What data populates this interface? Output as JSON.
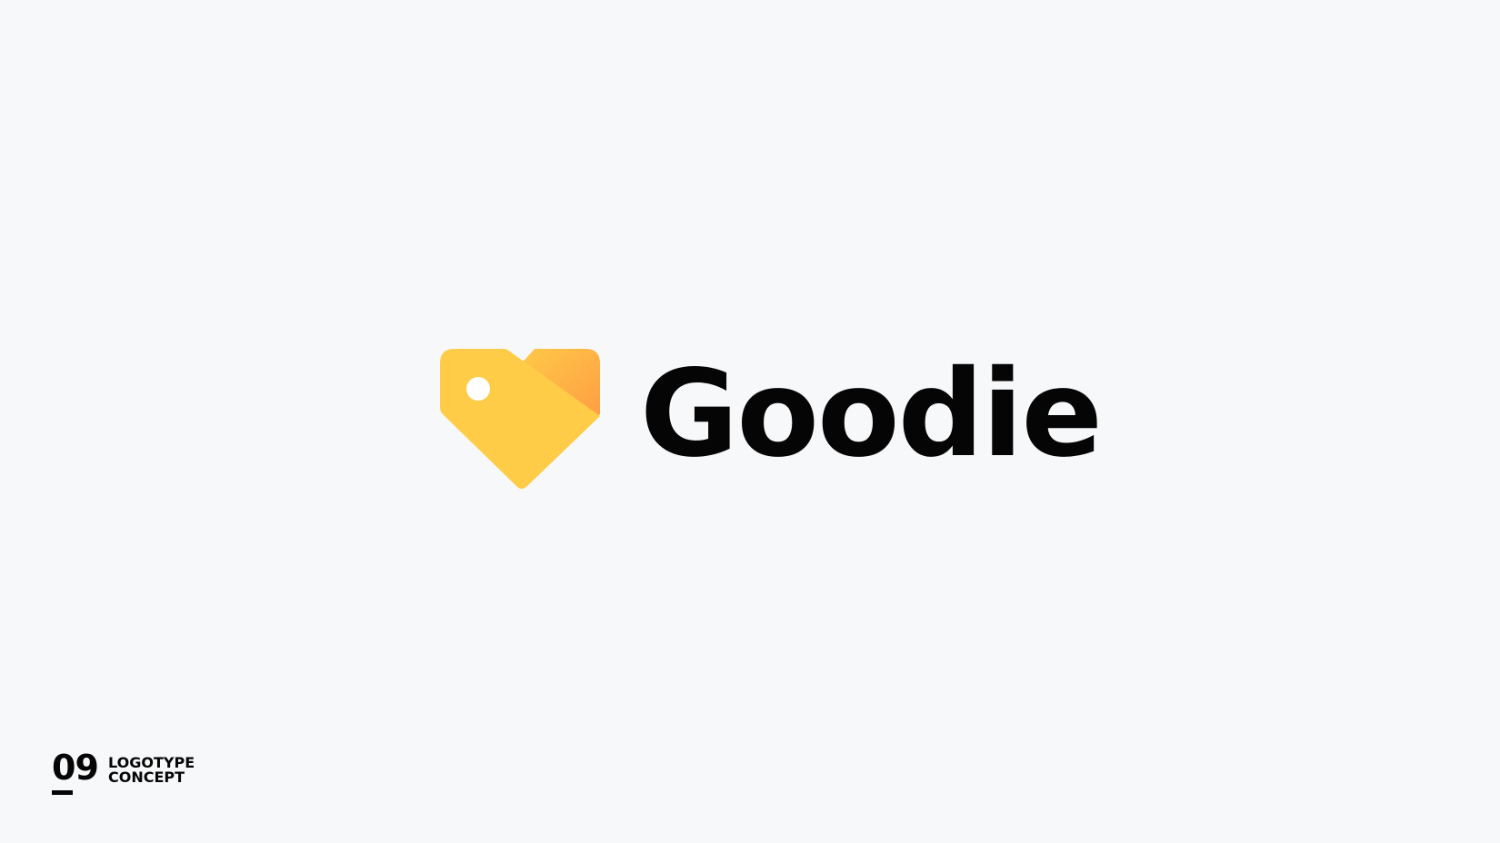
{
  "logo": {
    "wordmark": "Goodie",
    "colors": {
      "tag_yellow": "#ffcc47",
      "tag_orange_light": "#ffc04a",
      "tag_orange_dark": "#ff9f45",
      "hole": "#ffffff",
      "text": "#050505",
      "background": "#f7f8fa"
    }
  },
  "concept": {
    "number": "09",
    "line1": "LOGOTYPE",
    "line2": "CONCEPT"
  }
}
